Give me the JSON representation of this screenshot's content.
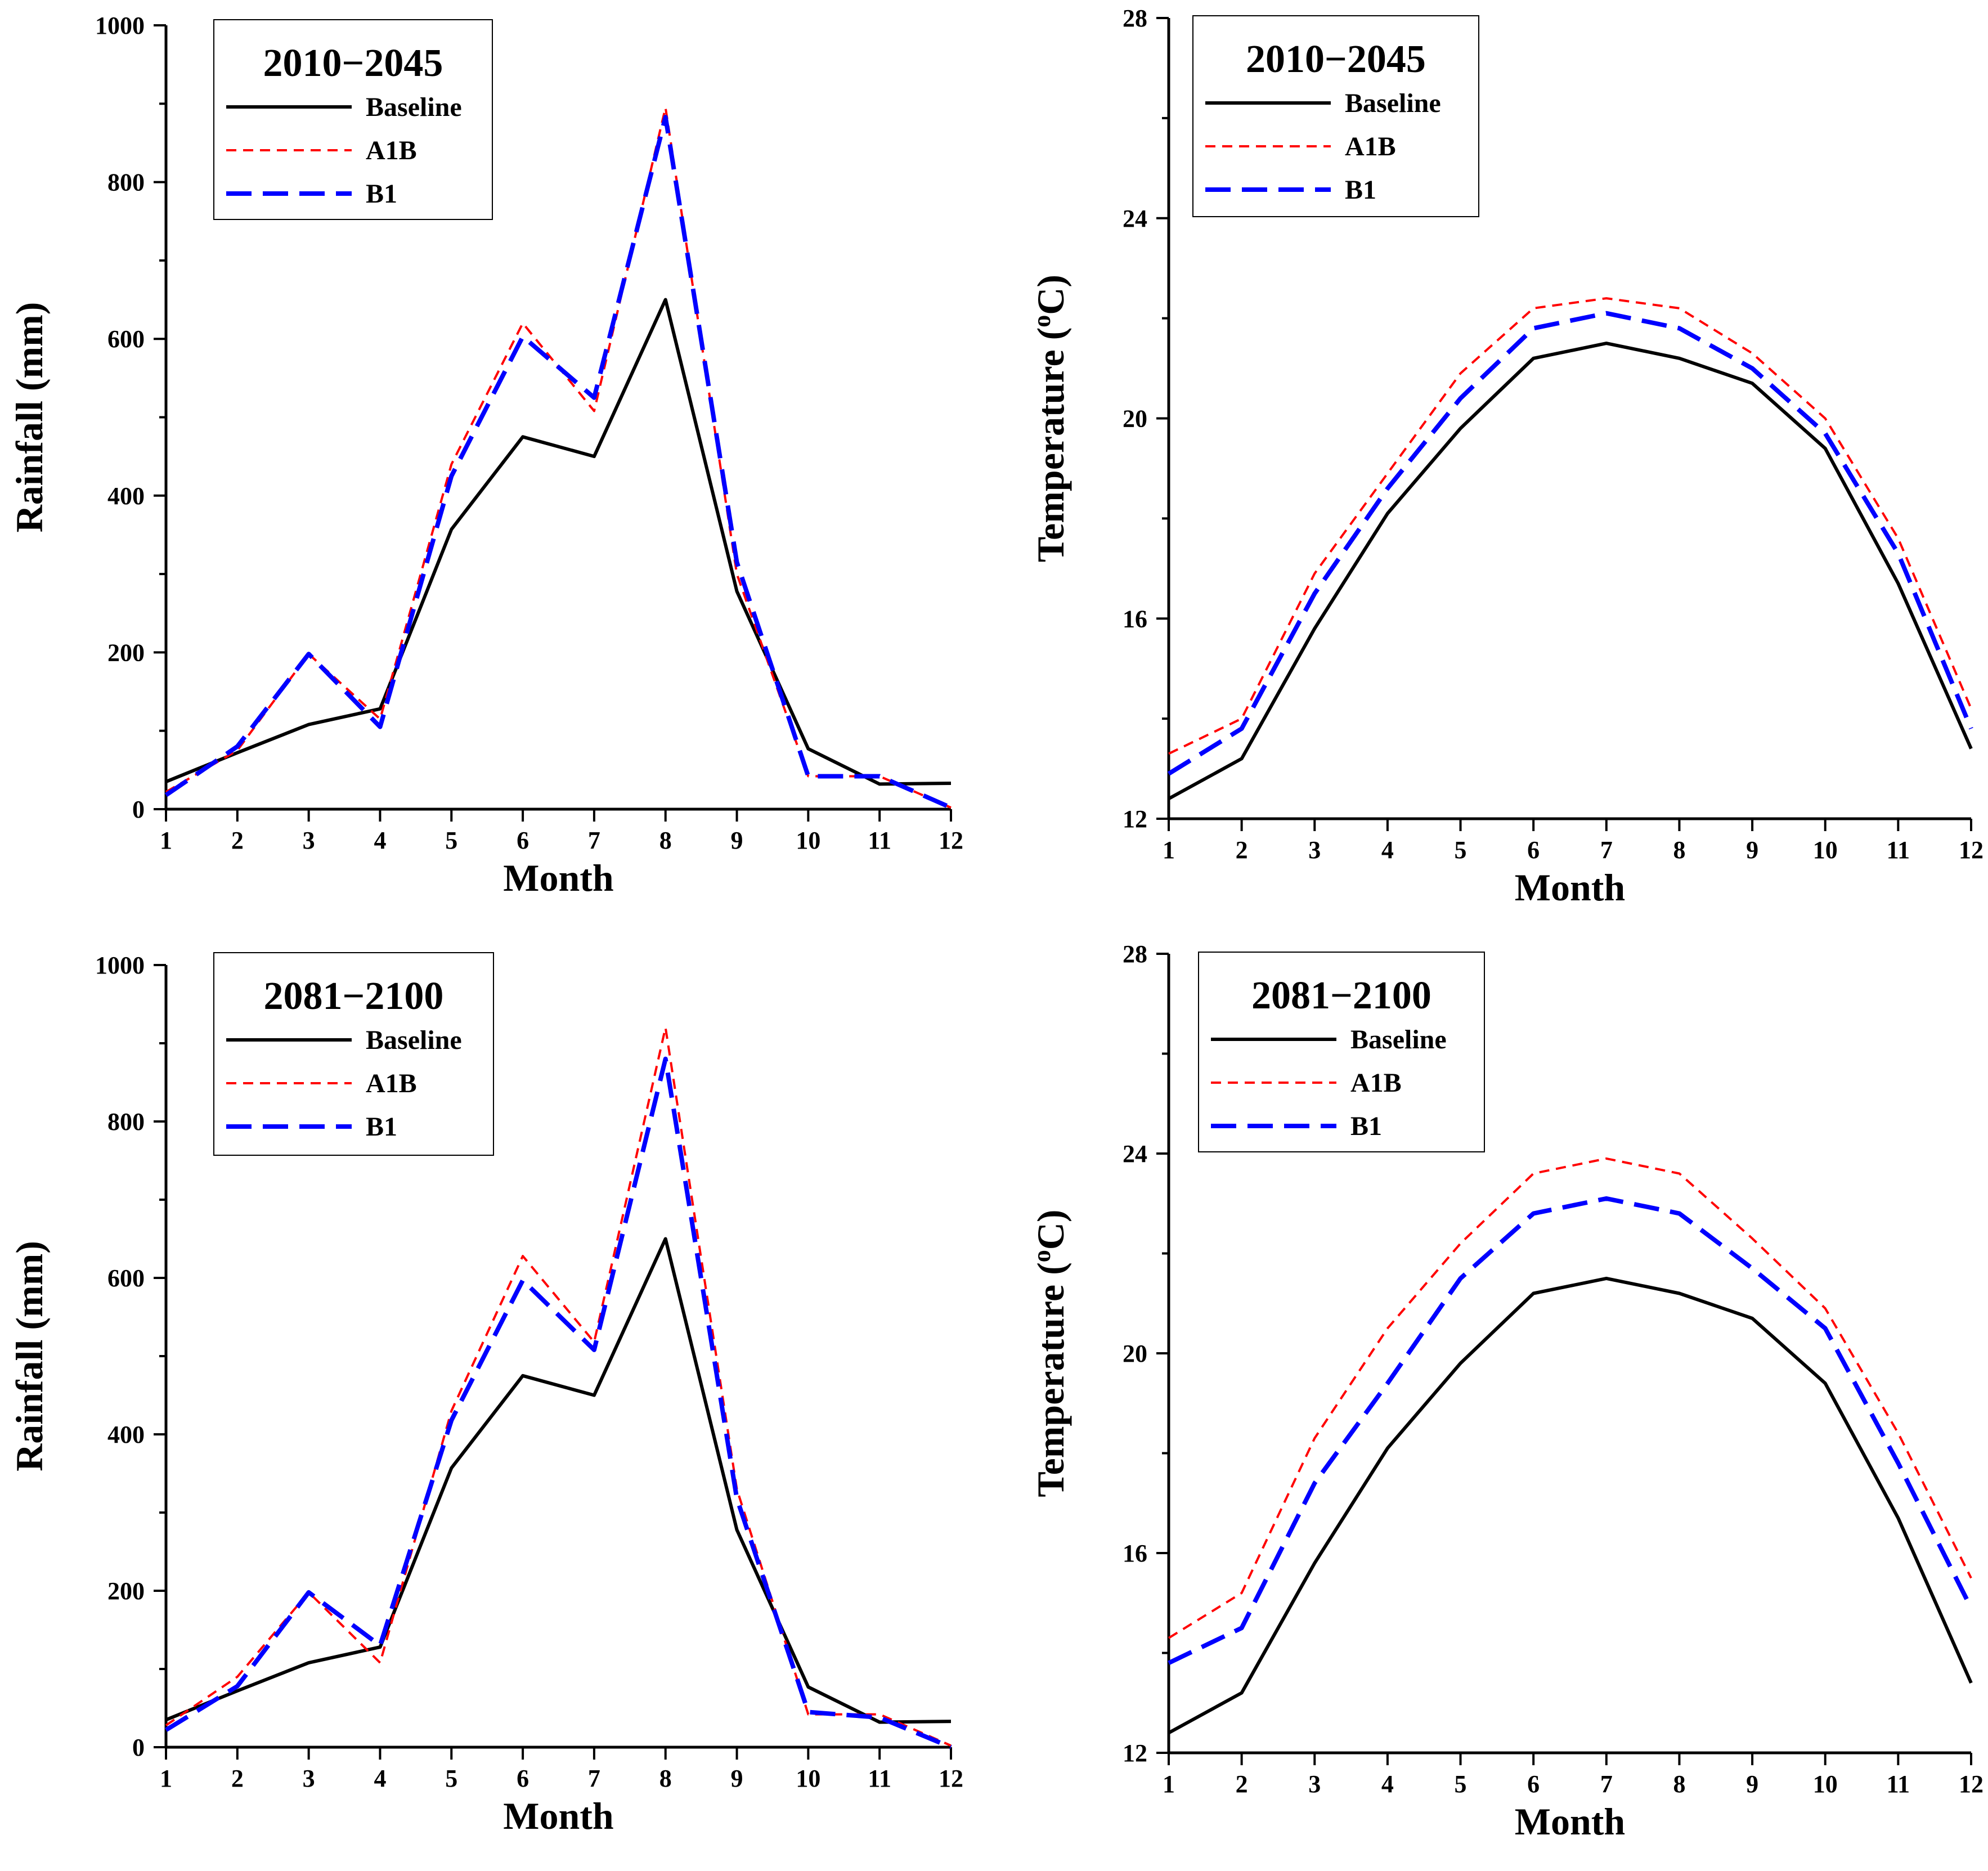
{
  "colors": {
    "baseline": "#000000",
    "a1b": "#ff0000",
    "b1": "#0000ff"
  },
  "chart_data": [
    {
      "type": "line",
      "title": "2010−2045",
      "xlabel": "Month",
      "ylabel": "Rainfall (mm)",
      "x": [
        1,
        2,
        3,
        4,
        5,
        6,
        7,
        8,
        9,
        10,
        11,
        12
      ],
      "xticks": [
        "1",
        "2",
        "3",
        "4",
        "5",
        "6",
        "7",
        "8",
        "9",
        "10",
        "11",
        "12"
      ],
      "yticks": [
        "0",
        "200",
        "400",
        "600",
        "800",
        "1000"
      ],
      "ylim": [
        0,
        1000
      ],
      "grid": false,
      "legend_position": "top-left",
      "series": [
        {
          "name": "Baseline",
          "key": "baseline",
          "values": [
            35,
            72,
            108,
            128,
            357,
            475,
            450,
            650,
            278,
            77,
            32,
            33
          ]
        },
        {
          "name": "A1B",
          "key": "a1b",
          "values": [
            22,
            75,
            198,
            115,
            440,
            620,
            508,
            895,
            300,
            42,
            42,
            2
          ]
        },
        {
          "name": "B1",
          "key": "b1",
          "values": [
            18,
            80,
            198,
            105,
            425,
            603,
            525,
            883,
            315,
            42,
            42,
            2
          ]
        }
      ]
    },
    {
      "type": "line",
      "title": "2010−2045",
      "xlabel": "Month",
      "ylabel": "Temperature (°C)",
      "ylabel_main": "Temperature (",
      "ylabel_sup": "o",
      "ylabel_tail": "C)",
      "x": [
        1,
        2,
        3,
        4,
        5,
        6,
        7,
        8,
        9,
        10,
        11,
        12
      ],
      "xticks": [
        "1",
        "2",
        "3",
        "4",
        "5",
        "6",
        "7",
        "8",
        "9",
        "10",
        "11",
        "12"
      ],
      "yticks": [
        "12",
        "16",
        "20",
        "24",
        "28"
      ],
      "ylim": [
        12,
        28
      ],
      "grid": false,
      "legend_position": "top-left",
      "series": [
        {
          "name": "Baseline",
          "key": "baseline",
          "values": [
            12.4,
            13.2,
            15.8,
            18.1,
            19.8,
            21.2,
            21.5,
            21.2,
            20.7,
            19.4,
            16.7,
            13.4
          ]
        },
        {
          "name": "A1B",
          "key": "a1b",
          "values": [
            13.3,
            14.0,
            16.9,
            18.9,
            20.9,
            22.2,
            22.4,
            22.2,
            21.3,
            20.0,
            17.6,
            14.2
          ]
        },
        {
          "name": "B1",
          "key": "b1",
          "values": [
            12.9,
            13.8,
            16.5,
            18.6,
            20.4,
            21.8,
            22.1,
            21.8,
            21.0,
            19.7,
            17.3,
            13.8
          ]
        }
      ]
    },
    {
      "type": "line",
      "title": "2081−2100",
      "xlabel": "Month",
      "ylabel": "Rainfall (mm)",
      "x": [
        1,
        2,
        3,
        4,
        5,
        6,
        7,
        8,
        9,
        10,
        11,
        12
      ],
      "xticks": [
        "1",
        "2",
        "3",
        "4",
        "5",
        "6",
        "7",
        "8",
        "9",
        "10",
        "11",
        "12"
      ],
      "yticks": [
        "0",
        "200",
        "400",
        "600",
        "800",
        "1000"
      ],
      "ylim": [
        0,
        1000
      ],
      "grid": false,
      "legend_position": "top-left",
      "series": [
        {
          "name": "Baseline",
          "key": "baseline",
          "values": [
            35,
            72,
            108,
            128,
            357,
            475,
            450,
            650,
            278,
            77,
            32,
            33
          ]
        },
        {
          "name": "A1B",
          "key": "a1b",
          "values": [
            28,
            90,
            198,
            108,
            430,
            628,
            518,
            920,
            330,
            42,
            42,
            2
          ]
        },
        {
          "name": "B1",
          "key": "b1",
          "values": [
            22,
            78,
            198,
            130,
            418,
            597,
            508,
            880,
            318,
            45,
            38,
            0
          ]
        }
      ]
    },
    {
      "type": "line",
      "title": "2081−2100",
      "xlabel": "Month",
      "ylabel": "Temperature (°C)",
      "ylabel_main": "Temperature (",
      "ylabel_sup": "o",
      "ylabel_tail": "C)",
      "x": [
        1,
        2,
        3,
        4,
        5,
        6,
        7,
        8,
        9,
        10,
        11,
        12
      ],
      "xticks": [
        "1",
        "2",
        "3",
        "4",
        "5",
        "6",
        "7",
        "8",
        "9",
        "10",
        "11",
        "12"
      ],
      "yticks": [
        "12",
        "16",
        "20",
        "24",
        "28"
      ],
      "ylim": [
        12,
        28
      ],
      "grid": false,
      "legend_position": "top-left",
      "series": [
        {
          "name": "Baseline",
          "key": "baseline",
          "values": [
            12.4,
            13.2,
            15.8,
            18.1,
            19.8,
            21.2,
            21.5,
            21.2,
            20.7,
            19.4,
            16.7,
            13.4
          ]
        },
        {
          "name": "A1B",
          "key": "a1b",
          "values": [
            14.3,
            15.2,
            18.3,
            20.5,
            22.2,
            23.6,
            23.9,
            23.6,
            22.3,
            20.9,
            18.4,
            15.5
          ]
        },
        {
          "name": "B1",
          "key": "b1",
          "values": [
            13.8,
            14.5,
            17.4,
            19.4,
            21.5,
            22.8,
            23.1,
            22.8,
            21.7,
            20.5,
            17.8,
            14.9
          ]
        }
      ]
    }
  ]
}
